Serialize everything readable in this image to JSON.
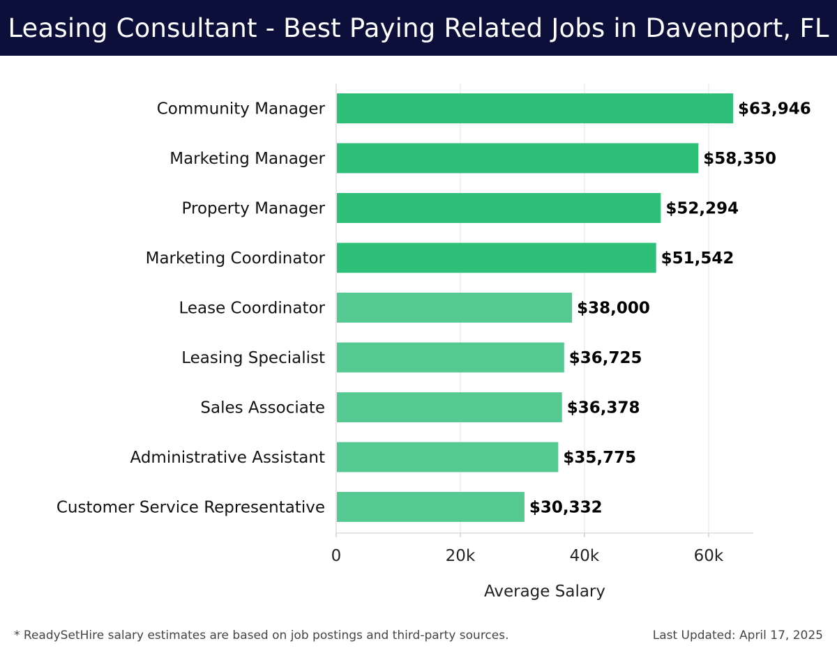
{
  "header": {
    "title": "Leasing Consultant - Best Paying Related Jobs in Davenport, FL"
  },
  "chart_data": {
    "type": "bar",
    "orientation": "horizontal",
    "categories": [
      "Community Manager",
      "Marketing Manager",
      "Property Manager",
      "Marketing Coordinator",
      "Lease Coordinator",
      "Leasing Specialist",
      "Sales Associate",
      "Administrative Assistant",
      "Customer Service Representative"
    ],
    "values": [
      63946,
      58350,
      52294,
      51542,
      38000,
      36725,
      36378,
      35775,
      30332
    ],
    "value_labels": [
      "$63,946",
      "$58,350",
      "$52,294",
      "$51,542",
      "$38,000",
      "$36,725",
      "$36,378",
      "$35,775",
      "$30,332"
    ],
    "xlabel": "Average Salary",
    "ylabel": "",
    "xlim": [
      0,
      67200
    ],
    "xticks": [
      0,
      20000,
      40000,
      60000
    ],
    "xtick_labels": [
      "0",
      "20k",
      "40k",
      "60k"
    ],
    "grid": true,
    "colors": {
      "high": "#2ebf78",
      "low": "#55c992"
    }
  },
  "footer": {
    "note": "* ReadySetHire salary estimates are based on job postings and third-party sources.",
    "updated": "Last Updated: April 17, 2025"
  }
}
